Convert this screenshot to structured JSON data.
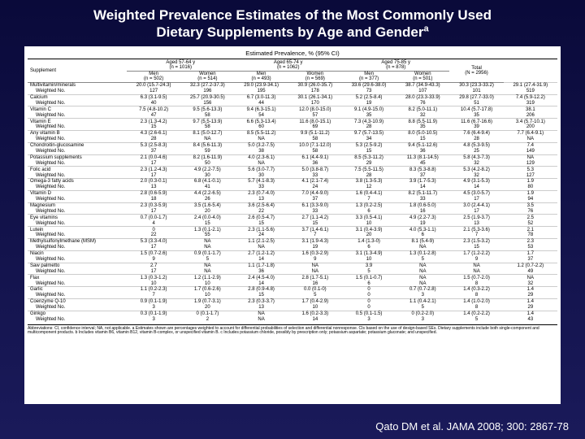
{
  "title_line1": "Weighted Prevalence Estimates of the Most Commonly Used",
  "title_line2": "Dietary Supplements by Age and Gender",
  "title_sup": "a",
  "table_caption": "Estimated Prevalence, % (95% CI)",
  "age_groups": [
    {
      "label": "Aged 57-64 y",
      "n": "(n = 1016)"
    },
    {
      "label": "Aged 65-74 y",
      "n": "(n = 1062)"
    },
    {
      "label": "Aged 75-85 y",
      "n": "(n = 878)"
    }
  ],
  "sex_cols": [
    {
      "label": "Men",
      "n": "(n = 502)"
    },
    {
      "label": "Women",
      "n": "(n = 514)"
    },
    {
      "label": "Men",
      "n": "(n = 493)"
    },
    {
      "label": "Women",
      "n": "(n = 569)"
    },
    {
      "label": "Men",
      "n": "(n = 377)"
    },
    {
      "label": "Women",
      "n": "(n = 501)"
    }
  ],
  "total_col": {
    "label": "Total",
    "n": "(N = 2956)"
  },
  "supplement_label": "Supplement",
  "weighted_label": "Weighted No.",
  "rows": [
    {
      "name": "Multivitamin/minerals",
      "v": [
        "20.0 (15.7-24.3)",
        "32.3 (27.2-37.3)",
        "29.0 (23.9-34.1)",
        "30.9 (26.0-35.7)",
        "33.6 (29.6-38.0)",
        "38.7 (34.9-43.3)",
        "30.3 (23.3-33.2)",
        "29.1 (27.4-31.9)"
      ],
      "w": [
        "127",
        "196",
        "195",
        "178",
        "73",
        "107",
        "101",
        "519"
      ]
    },
    {
      "name": "Calcium",
      "v": [
        "6.3 (3.1-9.5)",
        "25.7 (20.9-30.5)",
        "6.7 (3.0-11.3)",
        "30.1 (26.1-34.1)",
        "5.2 (2.5-8.4)",
        "28.0 (23.3-33.9)",
        "29.8 (27.7-33.0)",
        "7.4 (5.9-12.2)"
      ],
      "w": [
        "40",
        "156",
        "44",
        "170",
        "19",
        "76",
        "51",
        "319"
      ]
    },
    {
      "name": "Vitamin C",
      "v": [
        "7.5 (4.8-10.2)",
        "9.5 (5.6-13.3)",
        "9.4 (6.3-15.1)",
        "12.0 (8.0-15.0)",
        "9.1 (4.9-15.0)",
        "8.2 (5.0-11.1)",
        "10.4 (5.7-17.8)",
        "38.1"
      ],
      "w": [
        "47",
        "58",
        "54",
        "57",
        "35",
        "32",
        "35",
        "206"
      ]
    },
    {
      "name": "Vitamin E",
      "v": [
        "2.3 (1.3-4.2)",
        "9.7 (5.5-13.9)",
        "6.6 (5.3-13.4)",
        "11.6 (8.0-15.1)",
        "7.3 (4.3-10.9)",
        "8.8 (5.5-11.9)",
        "11.6 (6.7-16.6)",
        "3.4 (5.7-10.1)"
      ],
      "w": [
        "15",
        "58",
        "60",
        "69",
        "28",
        "35",
        "39",
        "200"
      ]
    },
    {
      "name": "Any vitamin B",
      "v": [
        "4.3 (2.6-6.1)",
        "8.1 (5.0-12.7)",
        "8.5 (5.5-11.2)",
        "9.9 (5.1-11.2)",
        "9.7 (5.7-13.5)",
        "8.0 (5.0-10.5)",
        "7.6 (6.4-9.4)",
        "7.7 (6.4-9.1)"
      ],
      "w": [
        "28",
        "NA",
        "NA",
        "58",
        "34",
        "15",
        "28",
        "NA"
      ]
    },
    {
      "name": "Chondroitin-glucosamine",
      "v": [
        "5.3 (2.5-8.3)",
        "8.4 (5.6-11.3)",
        "5.0 (3.2-7.5)",
        "10.0 (7.1-12.0)",
        "5.3 (2.5-9.2)",
        "9.4 (5.1-12.6)",
        "4.8 (5.3-9.5)",
        "7.4"
      ],
      "w": [
        "37",
        "59",
        "38",
        "58",
        "15",
        "36",
        "25",
        "149"
      ]
    },
    {
      "name": "Potassium supplements",
      "v": [
        "2.1 (0.0-4.6)",
        "8.2 (1.6-11.9)",
        "4.0 (2.3-6.1)",
        "6.1 (4.4-9.1)",
        "8.5 (5.3-11.2)",
        "11.3 (8.1-14.5)",
        "5.8 (4.3-7.3)",
        "NA"
      ],
      "w": [
        "17",
        "50",
        "NA",
        "36",
        "29",
        "45",
        "32",
        "129"
      ]
    },
    {
      "name": "Folic acid",
      "v": [
        "2.3 (1.2-4.3)",
        "4.9 (2.2-7.5)",
        "5.6 (3.0-7.7)",
        "5.0 (3.8-8.7)",
        "7.5 (5.5-11.5)",
        "8.3 (5.3-8.8)",
        "5.3 (4.2-8.2)",
        "5.3"
      ],
      "w": [
        "17",
        "30",
        "30",
        "33",
        "28",
        "37",
        "32",
        "127"
      ]
    },
    {
      "name": "Omega-3 fatty acids",
      "v": [
        "2.0 (0.3-0.1)",
        "6.8 (4.1-0.1)",
        "5.7 (4.1-8.3)",
        "4.1 (2.1-7.4)",
        "3.8 (1.3-5.3)",
        "3.9 (1.7-5.3)",
        "4.9 (3.1-5.3)",
        "1.9"
      ],
      "w": [
        "13",
        "41",
        "33",
        "24",
        "12",
        "14",
        "14",
        "80"
      ]
    },
    {
      "name": "Vitamin D",
      "v": [
        "2.8 (0.6-5.9)",
        "4.4 (2.2-6.5)",
        "2.3 (0.7-4.0)",
        "7.0 (4.4-9.0)",
        "1.6 (0.4-4.1)",
        "8.2 (5.1-11.7)",
        "4.5 (3.0-5.7)",
        "1.9"
      ],
      "w": [
        "18",
        "26",
        "13",
        "37",
        "7",
        "33",
        "17",
        "94"
      ]
    },
    {
      "name": "Magnesium",
      "v": [
        "2.3 (0.3-5.9)",
        "3.5 (1.6-5.4)",
        "3.6 (2.5-6.4)",
        "6.1 (3.3-9.0)",
        "1.3 (0.2-2.5)",
        "1.8 (0.6-5.0)",
        "3.0 (2.4-4.1)",
        "3.5"
      ],
      "w": [
        "17",
        "20",
        "22",
        "33",
        "6",
        "16",
        "17",
        "76"
      ]
    },
    {
      "name": "Eye vitamins",
      "v": [
        "0.7 (0.0-1.7)",
        "2.4 (0.0-4.0)",
        "2.6 (0.5-4.7)",
        "2.7 (1.1-4.2)",
        "3.3 (0.5-4.1)",
        "4.9 (2.2-7.3)",
        "2.5 (1.9-3.7)",
        "2.5"
      ],
      "w": [
        "4",
        "15",
        "15",
        "15",
        "10",
        "19",
        "13",
        "52"
      ]
    },
    {
      "name": "Lutein",
      "v": [
        "0",
        "1.3 (0.1-2.1)",
        "2.3 (1.1-5.6)",
        "3.7 (1.4-6.1)",
        "3.1 (0.4-3.9)",
        "4.0 (5.3-1.1)",
        "2.1 (5.3-3.6)",
        "2.1"
      ],
      "w": [
        "22",
        "55",
        "24",
        "7",
        "20",
        "6",
        "7",
        "78"
      ]
    },
    {
      "name": "Methylsulfonylmethane (MSM)",
      "v": [
        "5.3 (3.3-4.0)",
        "NA",
        "1.1 (2.1-2.5)",
        "3.1 (1.9-4.3)",
        "1.4 (1.3-0)",
        "8.1 (5.4-9)",
        "2.3 (1.5-3.2)",
        "2.3"
      ],
      "w": [
        "17",
        "NA",
        "NA",
        "19",
        "6",
        "NA",
        "15",
        "53"
      ]
    },
    {
      "name": "Niacin",
      "v": [
        "1.5 (0.7-2.6)",
        "0.9 (0.1-1.7)",
        "2.7 (1.2-1.2)",
        "1.6 (0.3-2.9)",
        "3.1 (1.3-4.9)",
        "1.3 (0.1-2.8)",
        "1.7 (1.2-2.2)",
        "1.7"
      ],
      "w": [
        "9",
        "5",
        "14",
        "9",
        "10",
        "5",
        "9",
        "37"
      ]
    },
    {
      "name": "Saw palmetto",
      "v": [
        "2.7",
        "NA",
        "1.1 (1.7-1.8)",
        "NA",
        "3.9",
        "NA",
        "NA",
        "1.2 (0.7-2.2)"
      ],
      "w": [
        "17",
        "NA",
        "36",
        "NA",
        "5",
        "NA",
        "NA",
        "49"
      ]
    },
    {
      "name": "Flax",
      "v": [
        "1.3 (0.3-1.2)",
        "1.2 (1.1-2.9)",
        "2.4 (4.5-4.0)",
        "2.8 (1.7-5.1)",
        "1.5 (0.1-0.7)",
        "NA",
        "1.5 (0.7-2.0)",
        "NA"
      ],
      "w": [
        "10",
        "10",
        "14",
        "16",
        "6",
        "NA",
        "8",
        "32"
      ]
    },
    {
      "name": "Garlic",
      "v": [
        "1.1 (0.2-2.3)",
        "1.7 (0.6-2.6)",
        "2.8 (0.9-4.8)",
        "0.0 (0.1-0)",
        "0",
        "0.7 (0.7-2.8)",
        "1.4 (0.3-2.2)",
        "1.4"
      ],
      "w": [
        "7",
        "10",
        "15",
        "5",
        "0",
        "3",
        "8",
        "29"
      ]
    },
    {
      "name": "Coenzyme Q-10",
      "v": [
        "0.9 (0.1-1.9)",
        "1.9 (0.7-3.1)",
        "2.3 (0.3-3.7)",
        "1.7 (0.4-2.9)",
        "0",
        "1.1 (0.4-2.1)",
        "1.4 (1.0-2.0)",
        "1.4"
      ],
      "w": [
        "3",
        "20",
        "13",
        "10",
        "0",
        "5",
        "8",
        "29"
      ]
    },
    {
      "name": "Ginkgo",
      "v": [
        "0.3 (0.1-1.9)",
        "0 (0.1-1.7)",
        "NA",
        "1.6 (0.2-3.3)",
        "0.5 (0.1-1.5)",
        "0 (0.2-2.0)",
        "1.4 (0.2-2.2)",
        "1.4"
      ],
      "w": [
        "3",
        "2",
        "NA",
        "14",
        "3",
        "3",
        "5",
        "43"
      ]
    }
  ],
  "footnote": "Abbreviations: CI, confidence interval; NA, not applicable.\na Estimates shown are percentages weighted to account for differential probabilities of selection and differential nonresponse. CIs based on the use of design-based SEs. Dietary supplements include both single-component and multicomponent products.\nb Includes vitamin B6, vitamin B12, vitamin B-complex, or unspecified vitamin B.\nc Includes potassium chloride, possibly by prescription only; potassium aspartate; potassium gluconate; and unspecified.",
  "citation": "Qato DM et al. JAMA 2008; 300: 2867-78"
}
